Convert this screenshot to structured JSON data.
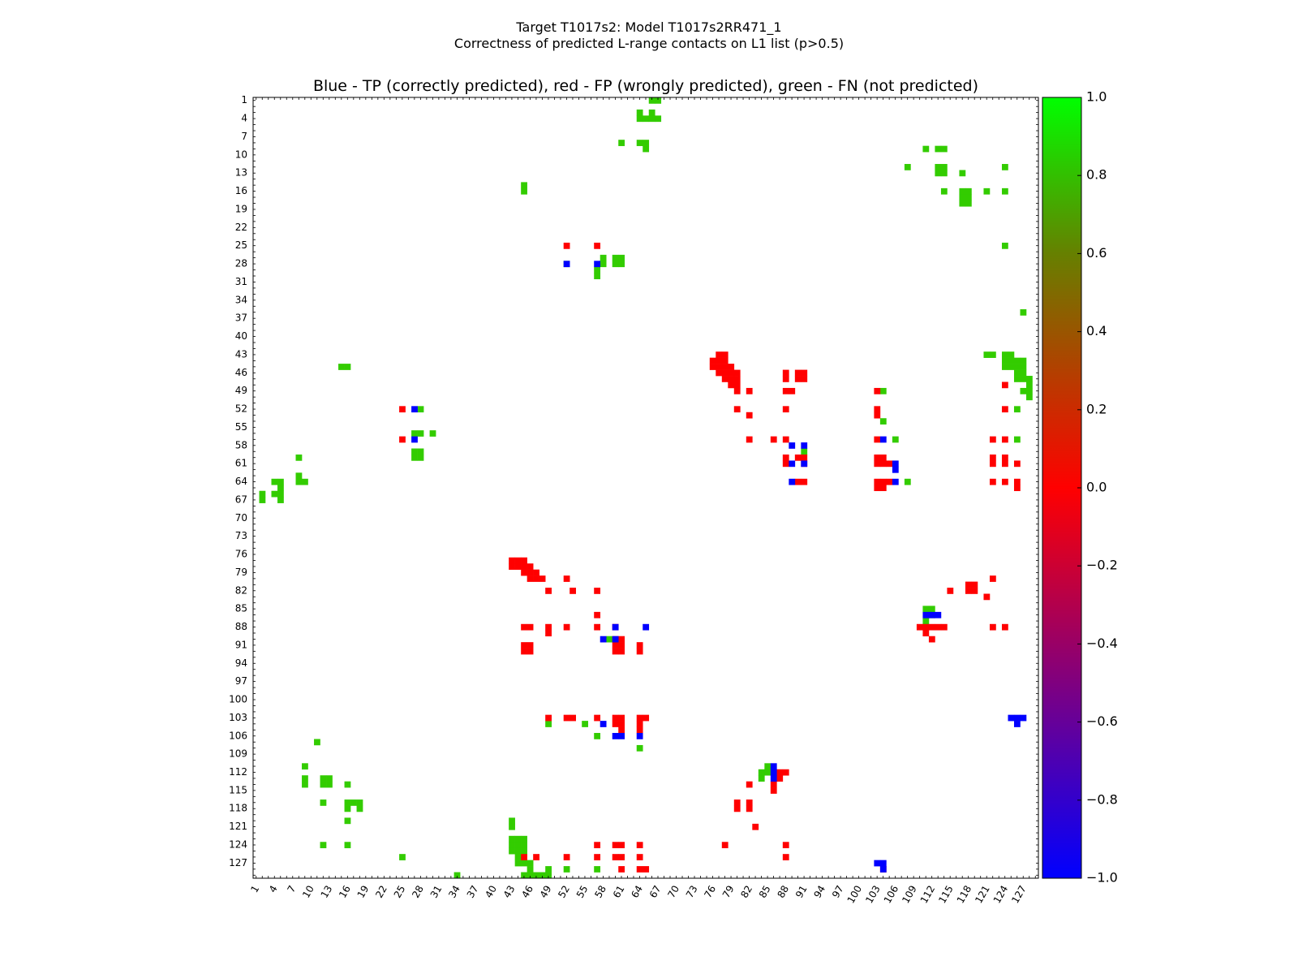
{
  "chart_data": {
    "type": "heatmap",
    "title": "Target T1017s2: Model T1017s2RR471_1",
    "subtitle": "Correctness of predicted L-range contacts on L1 list (p>0.5)",
    "panel_title": "Blue - TP (correctly predicted), red - FP (wrongly predicted), green - FN (not predicted)",
    "xlim": [
      1,
      129
    ],
    "ylim": [
      1,
      129
    ],
    "y_inverted": true,
    "ticks": [
      "1",
      "4",
      "7",
      "10",
      "13",
      "16",
      "19",
      "22",
      "25",
      "28",
      "31",
      "34",
      "37",
      "40",
      "43",
      "46",
      "49",
      "52",
      "55",
      "58",
      "61",
      "64",
      "67",
      "70",
      "73",
      "76",
      "79",
      "82",
      "85",
      "88",
      "91",
      "94",
      "97",
      "100",
      "103",
      "106",
      "109",
      "112",
      "115",
      "118",
      "121",
      "124",
      "127"
    ],
    "legend": {
      "TP": {
        "label": "correctly predicted",
        "value": -1,
        "color": "#0000ff"
      },
      "FP": {
        "label": "wrongly predicted",
        "value": 0,
        "color": "#ff0000"
      },
      "FN": {
        "label": "not predicted",
        "value": 1,
        "color": "#33cc00"
      }
    },
    "colorbar": {
      "range": [
        -1.0,
        1.0
      ],
      "ticks": [
        "1.0",
        "0.8",
        "0.6",
        "0.4",
        "0.2",
        "0.0",
        "−0.2",
        "−0.4",
        "−0.6",
        "−0.8",
        "−1.0"
      ],
      "stops": [
        {
          "value": 1.0,
          "color": "#00ff00"
        },
        {
          "value": 0.6,
          "color": "#668000"
        },
        {
          "value": 0.0,
          "color": "#ff0000"
        },
        {
          "value": -1.0,
          "color": "#0000ff"
        }
      ]
    },
    "cells": {
      "TP": [
        [
          27,
          52
        ],
        [
          27,
          57
        ],
        [
          52,
          28
        ],
        [
          57,
          28
        ],
        [
          89,
          58
        ],
        [
          91,
          58
        ],
        [
          89,
          61
        ],
        [
          91,
          61
        ],
        [
          89,
          64
        ],
        [
          104,
          57
        ],
        [
          106,
          61
        ],
        [
          106,
          62
        ],
        [
          106,
          64
        ],
        [
          60,
          88
        ],
        [
          65,
          88
        ],
        [
          58,
          90
        ],
        [
          60,
          90
        ],
        [
          58,
          104
        ],
        [
          60,
          106
        ],
        [
          61,
          106
        ],
        [
          64,
          106
        ],
        [
          111,
          86
        ],
        [
          112,
          86
        ],
        [
          113,
          86
        ],
        [
          86,
          111
        ],
        [
          86,
          112
        ],
        [
          86,
          113
        ],
        [
          103,
          127
        ],
        [
          104,
          128
        ],
        [
          104,
          127
        ],
        [
          125,
          103
        ],
        [
          126,
          103
        ],
        [
          127,
          103
        ],
        [
          126,
          104
        ]
      ],
      "FP": [
        [
          52,
          25
        ],
        [
          57,
          25
        ],
        [
          25,
          52
        ],
        [
          25,
          57
        ],
        [
          77,
          43
        ],
        [
          78,
          43
        ],
        [
          76,
          44
        ],
        [
          77,
          44
        ],
        [
          78,
          44
        ],
        [
          76,
          45
        ],
        [
          77,
          45
        ],
        [
          78,
          45
        ],
        [
          79,
          45
        ],
        [
          77,
          46
        ],
        [
          78,
          46
        ],
        [
          79,
          46
        ],
        [
          80,
          46
        ],
        [
          78,
          47
        ],
        [
          79,
          47
        ],
        [
          80,
          47
        ],
        [
          79,
          48
        ],
        [
          80,
          48
        ],
        [
          80,
          49
        ],
        [
          82,
          49
        ],
        [
          88,
          46
        ],
        [
          88,
          47
        ],
        [
          90,
          46
        ],
        [
          90,
          47
        ],
        [
          91,
          46
        ],
        [
          91,
          47
        ],
        [
          88,
          49
        ],
        [
          89,
          49
        ],
        [
          80,
          52
        ],
        [
          88,
          52
        ],
        [
          82,
          53
        ],
        [
          103,
          49
        ],
        [
          103,
          52
        ],
        [
          103,
          53
        ],
        [
          82,
          57
        ],
        [
          86,
          57
        ],
        [
          88,
          57
        ],
        [
          103,
          57
        ],
        [
          88,
          60
        ],
        [
          88,
          61
        ],
        [
          90,
          60
        ],
        [
          91,
          60
        ],
        [
          91,
          61
        ],
        [
          103,
          60
        ],
        [
          104,
          60
        ],
        [
          103,
          61
        ],
        [
          104,
          61
        ],
        [
          105,
          61
        ],
        [
          103,
          64
        ],
        [
          104,
          64
        ],
        [
          105,
          64
        ],
        [
          103,
          65
        ],
        [
          104,
          65
        ],
        [
          91,
          64
        ],
        [
          90,
          64
        ],
        [
          124,
          52
        ],
        [
          122,
          57
        ],
        [
          124,
          57
        ],
        [
          122,
          60
        ],
        [
          124,
          60
        ],
        [
          122,
          61
        ],
        [
          124,
          61
        ],
        [
          126,
          61
        ],
        [
          122,
          64
        ],
        [
          124,
          64
        ],
        [
          126,
          64
        ],
        [
          126,
          65
        ],
        [
          124,
          48
        ],
        [
          43,
          77
        ],
        [
          44,
          77
        ],
        [
          45,
          77
        ],
        [
          43,
          78
        ],
        [
          44,
          78
        ],
        [
          45,
          78
        ],
        [
          46,
          78
        ],
        [
          45,
          79
        ],
        [
          46,
          79
        ],
        [
          47,
          79
        ],
        [
          46,
          80
        ],
        [
          47,
          80
        ],
        [
          48,
          80
        ],
        [
          52,
          80
        ],
        [
          49,
          82
        ],
        [
          53,
          82
        ],
        [
          57,
          82
        ],
        [
          57,
          86
        ],
        [
          45,
          88
        ],
        [
          46,
          88
        ],
        [
          49,
          88
        ],
        [
          52,
          88
        ],
        [
          57,
          88
        ],
        [
          60,
          88
        ],
        [
          49,
          89
        ],
        [
          45,
          91
        ],
        [
          46,
          91
        ],
        [
          45,
          92
        ],
        [
          46,
          92
        ],
        [
          60,
          90
        ],
        [
          61,
          90
        ],
        [
          60,
          91
        ],
        [
          61,
          91
        ],
        [
          60,
          92
        ],
        [
          61,
          92
        ],
        [
          64,
          91
        ],
        [
          64,
          92
        ],
        [
          49,
          103
        ],
        [
          52,
          103
        ],
        [
          53,
          103
        ],
        [
          57,
          103
        ],
        [
          60,
          103
        ],
        [
          61,
          103
        ],
        [
          60,
          104
        ],
        [
          61,
          104
        ],
        [
          61,
          105
        ],
        [
          64,
          103
        ],
        [
          65,
          103
        ],
        [
          64,
          104
        ],
        [
          64,
          105
        ],
        [
          122,
          80
        ],
        [
          115,
          82
        ],
        [
          118,
          81
        ],
        [
          119,
          81
        ],
        [
          118,
          82
        ],
        [
          119,
          82
        ],
        [
          121,
          83
        ],
        [
          110,
          88
        ],
        [
          111,
          88
        ],
        [
          112,
          88
        ],
        [
          113,
          88
        ],
        [
          114,
          88
        ],
        [
          111,
          89
        ],
        [
          112,
          90
        ],
        [
          122,
          88
        ],
        [
          124,
          88
        ],
        [
          82,
          114
        ],
        [
          80,
          117
        ],
        [
          80,
          118
        ],
        [
          82,
          117
        ],
        [
          82,
          118
        ],
        [
          83,
          121
        ],
        [
          87,
          112
        ],
        [
          88,
          112
        ],
        [
          87,
          113
        ],
        [
          86,
          114
        ],
        [
          86,
          115
        ],
        [
          78,
          124
        ],
        [
          88,
          124
        ],
        [
          88,
          126
        ],
        [
          104,
          128
        ],
        [
          57,
          124
        ],
        [
          57,
          126
        ],
        [
          60,
          124
        ],
        [
          61,
          124
        ],
        [
          60,
          126
        ],
        [
          61,
          126
        ],
        [
          64,
          124
        ],
        [
          64,
          126
        ],
        [
          45,
          126
        ],
        [
          47,
          126
        ],
        [
          52,
          126
        ],
        [
          61,
          128
        ],
        [
          64,
          128
        ],
        [
          65,
          128
        ]
      ],
      "FN": [
        [
          66,
          1
        ],
        [
          67,
          1
        ],
        [
          64,
          3
        ],
        [
          66,
          3
        ],
        [
          64,
          4
        ],
        [
          65,
          4
        ],
        [
          66,
          4
        ],
        [
          67,
          4
        ],
        [
          61,
          8
        ],
        [
          64,
          8
        ],
        [
          65,
          8
        ],
        [
          65,
          9
        ],
        [
          111,
          9
        ],
        [
          113,
          9
        ],
        [
          114,
          9
        ],
        [
          108,
          12
        ],
        [
          113,
          12
        ],
        [
          114,
          12
        ],
        [
          113,
          13
        ],
        [
          114,
          13
        ],
        [
          117,
          13
        ],
        [
          124,
          12
        ],
        [
          45,
          15
        ],
        [
          45,
          16
        ],
        [
          114,
          16
        ],
        [
          117,
          16
        ],
        [
          118,
          16
        ],
        [
          117,
          17
        ],
        [
          118,
          17
        ],
        [
          117,
          18
        ],
        [
          118,
          18
        ],
        [
          121,
          16
        ],
        [
          124,
          16
        ],
        [
          124,
          25
        ],
        [
          58,
          27
        ],
        [
          58,
          28
        ],
        [
          60,
          27
        ],
        [
          61,
          27
        ],
        [
          60,
          28
        ],
        [
          61,
          28
        ],
        [
          52,
          28
        ],
        [
          57,
          29
        ],
        [
          57,
          30
        ],
        [
          127,
          36
        ],
        [
          121,
          43
        ],
        [
          122,
          43
        ],
        [
          124,
          43
        ],
        [
          125,
          43
        ],
        [
          124,
          44
        ],
        [
          125,
          44
        ],
        [
          126,
          44
        ],
        [
          127,
          44
        ],
        [
          124,
          45
        ],
        [
          125,
          45
        ],
        [
          126,
          45
        ],
        [
          127,
          45
        ],
        [
          126,
          46
        ],
        [
          127,
          46
        ],
        [
          126,
          47
        ],
        [
          127,
          47
        ],
        [
          128,
          47
        ],
        [
          128,
          48
        ],
        [
          127,
          49
        ],
        [
          128,
          49
        ],
        [
          128,
          50
        ],
        [
          126,
          52
        ],
        [
          104,
          49
        ],
        [
          104,
          54
        ],
        [
          106,
          57
        ],
        [
          126,
          57
        ],
        [
          108,
          64
        ],
        [
          15,
          45
        ],
        [
          16,
          45
        ],
        [
          28,
          52
        ],
        [
          27,
          56
        ],
        [
          28,
          56
        ],
        [
          30,
          56
        ],
        [
          27,
          59
        ],
        [
          28,
          59
        ],
        [
          27,
          60
        ],
        [
          28,
          60
        ],
        [
          8,
          60
        ],
        [
          8,
          63
        ],
        [
          4,
          64
        ],
        [
          5,
          64
        ],
        [
          5,
          65
        ],
        [
          4,
          66
        ],
        [
          5,
          66
        ],
        [
          2,
          66
        ],
        [
          2,
          67
        ],
        [
          5,
          67
        ],
        [
          8,
          64
        ],
        [
          9,
          64
        ],
        [
          91,
          59
        ],
        [
          111,
          85
        ],
        [
          112,
          85
        ],
        [
          112,
          86
        ],
        [
          111,
          87
        ],
        [
          59,
          90
        ],
        [
          11,
          107
        ],
        [
          9,
          111
        ],
        [
          9,
          113
        ],
        [
          9,
          114
        ],
        [
          12,
          113
        ],
        [
          12,
          114
        ],
        [
          13,
          113
        ],
        [
          13,
          114
        ],
        [
          16,
          114
        ],
        [
          16,
          117
        ],
        [
          17,
          117
        ],
        [
          18,
          117
        ],
        [
          16,
          118
        ],
        [
          18,
          118
        ],
        [
          12,
          117
        ],
        [
          16,
          120
        ],
        [
          12,
          124
        ],
        [
          16,
          124
        ],
        [
          43,
          120
        ],
        [
          43,
          121
        ],
        [
          43,
          123
        ],
        [
          44,
          123
        ],
        [
          45,
          123
        ],
        [
          43,
          124
        ],
        [
          44,
          124
        ],
        [
          45,
          124
        ],
        [
          43,
          125
        ],
        [
          44,
          125
        ],
        [
          45,
          125
        ],
        [
          44,
          126
        ],
        [
          44,
          127
        ],
        [
          45,
          127
        ],
        [
          46,
          127
        ],
        [
          46,
          128
        ],
        [
          45,
          129
        ],
        [
          46,
          129
        ],
        [
          47,
          129
        ],
        [
          48,
          129
        ],
        [
          49,
          129
        ],
        [
          49,
          128
        ],
        [
          25,
          126
        ],
        [
          34,
          129
        ],
        [
          52,
          128
        ],
        [
          57,
          128
        ],
        [
          49,
          104
        ],
        [
          55,
          104
        ],
        [
          57,
          106
        ],
        [
          64,
          108
        ],
        [
          85,
          111
        ],
        [
          85,
          112
        ],
        [
          84,
          112
        ],
        [
          84,
          113
        ]
      ]
    }
  }
}
